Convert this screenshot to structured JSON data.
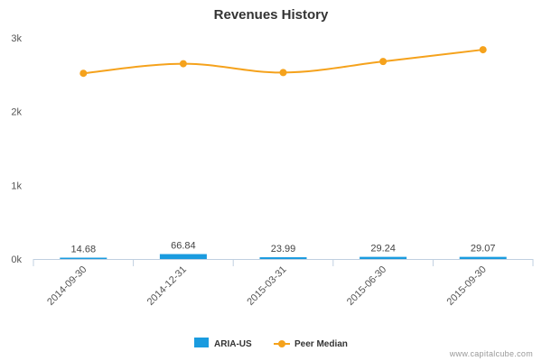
{
  "credit": "www.capitalcube.com",
  "chart_data": {
    "type": "bar+line",
    "title": "Revenues History",
    "categories": [
      "2014-09-30",
      "2014-12-31",
      "2015-03-31",
      "2015-06-30",
      "2015-09-30"
    ],
    "y_ticks": [
      {
        "value": 0,
        "label": "0k"
      },
      {
        "value": 1000,
        "label": "1k"
      },
      {
        "value": 2000,
        "label": "2k"
      },
      {
        "value": 3000,
        "label": "3k"
      }
    ],
    "ylim": [
      0,
      3000
    ],
    "grid": false,
    "legend_position": "bottom-center",
    "series": [
      {
        "name": "ARIA-US",
        "type": "bar",
        "color": "#1a9bdf",
        "values": [
          14.68,
          66.84,
          23.99,
          29.24,
          29.07
        ],
        "data_labels": [
          "14.68",
          "66.84",
          "23.99",
          "29.24",
          "29.07"
        ]
      },
      {
        "name": "Peer Median",
        "type": "line",
        "color": "#f5a21c",
        "values": [
          2520,
          2650,
          2530,
          2680,
          2840
        ]
      }
    ]
  }
}
